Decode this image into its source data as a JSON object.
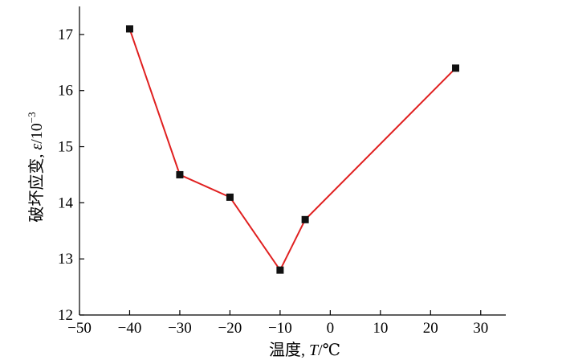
{
  "chart_data": {
    "type": "line",
    "title": "",
    "xlabel": {
      "pre": "温度, ",
      "italic": "T",
      "post": "/℃"
    },
    "ylabel": {
      "pre": "破坏应变, ",
      "italic": "ε",
      "post": "/10",
      "sup": "−3"
    },
    "xlim": [
      -50,
      35
    ],
    "ylim": [
      12,
      17.5
    ],
    "xticks": [
      -50,
      -40,
      -30,
      -20,
      -10,
      0,
      10,
      20,
      30
    ],
    "xtick_labels": [
      "−50",
      "−40",
      "−30",
      "−20",
      "−10",
      "0",
      "10",
      "20",
      "30"
    ],
    "yticks": [
      12,
      13,
      14,
      15,
      16,
      17
    ],
    "ytick_labels": [
      "12",
      "13",
      "14",
      "15",
      "16",
      "17"
    ],
    "grid": false,
    "series": [
      {
        "x": [
          -40,
          -30,
          -20,
          -10,
          -5,
          25
        ],
        "y": [
          17.1,
          14.5,
          14.1,
          12.8,
          13.7,
          16.4
        ],
        "line_color": "#e02020",
        "marker": "square",
        "marker_color": "#111111"
      }
    ]
  }
}
